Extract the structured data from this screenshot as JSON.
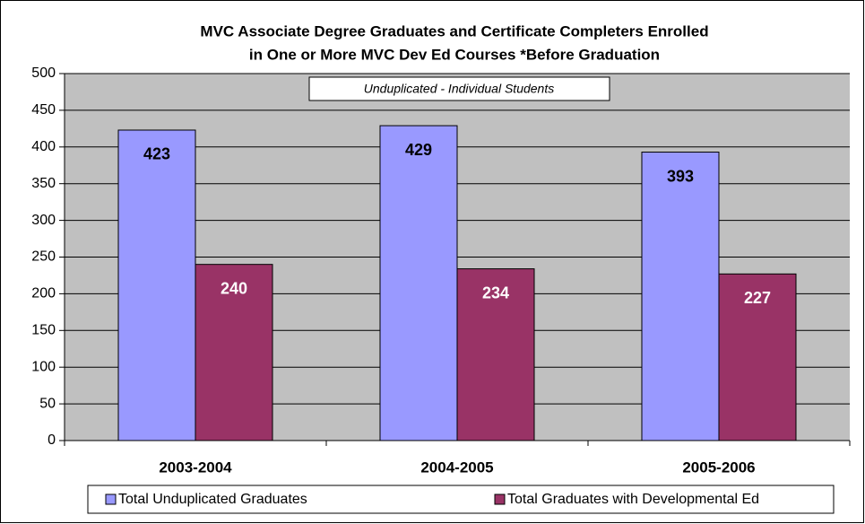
{
  "chart_data": {
    "type": "bar",
    "title": [
      "MVC Associate Degree Graduates and Certificate Completers Enrolled",
      "in One or More MVC Dev Ed Courses *Before Graduation"
    ],
    "annotation": "Unduplicated - Individual Students",
    "categories": [
      "2003-2004",
      "2004-2005",
      "2005-2006"
    ],
    "series": [
      {
        "name": "Total Unduplicated Graduates",
        "color": "#9999ff",
        "label_color": "#000000",
        "values": [
          423,
          429,
          393
        ]
      },
      {
        "name": "Total Graduates with Developmental Ed",
        "color": "#993366",
        "label_color": "#ffffff",
        "values": [
          240,
          234,
          227
        ]
      }
    ],
    "ylim": [
      0,
      500
    ],
    "yticks": [
      0,
      50,
      100,
      150,
      200,
      250,
      300,
      350,
      400,
      450,
      500
    ],
    "grid": true,
    "legend": "bottom"
  }
}
